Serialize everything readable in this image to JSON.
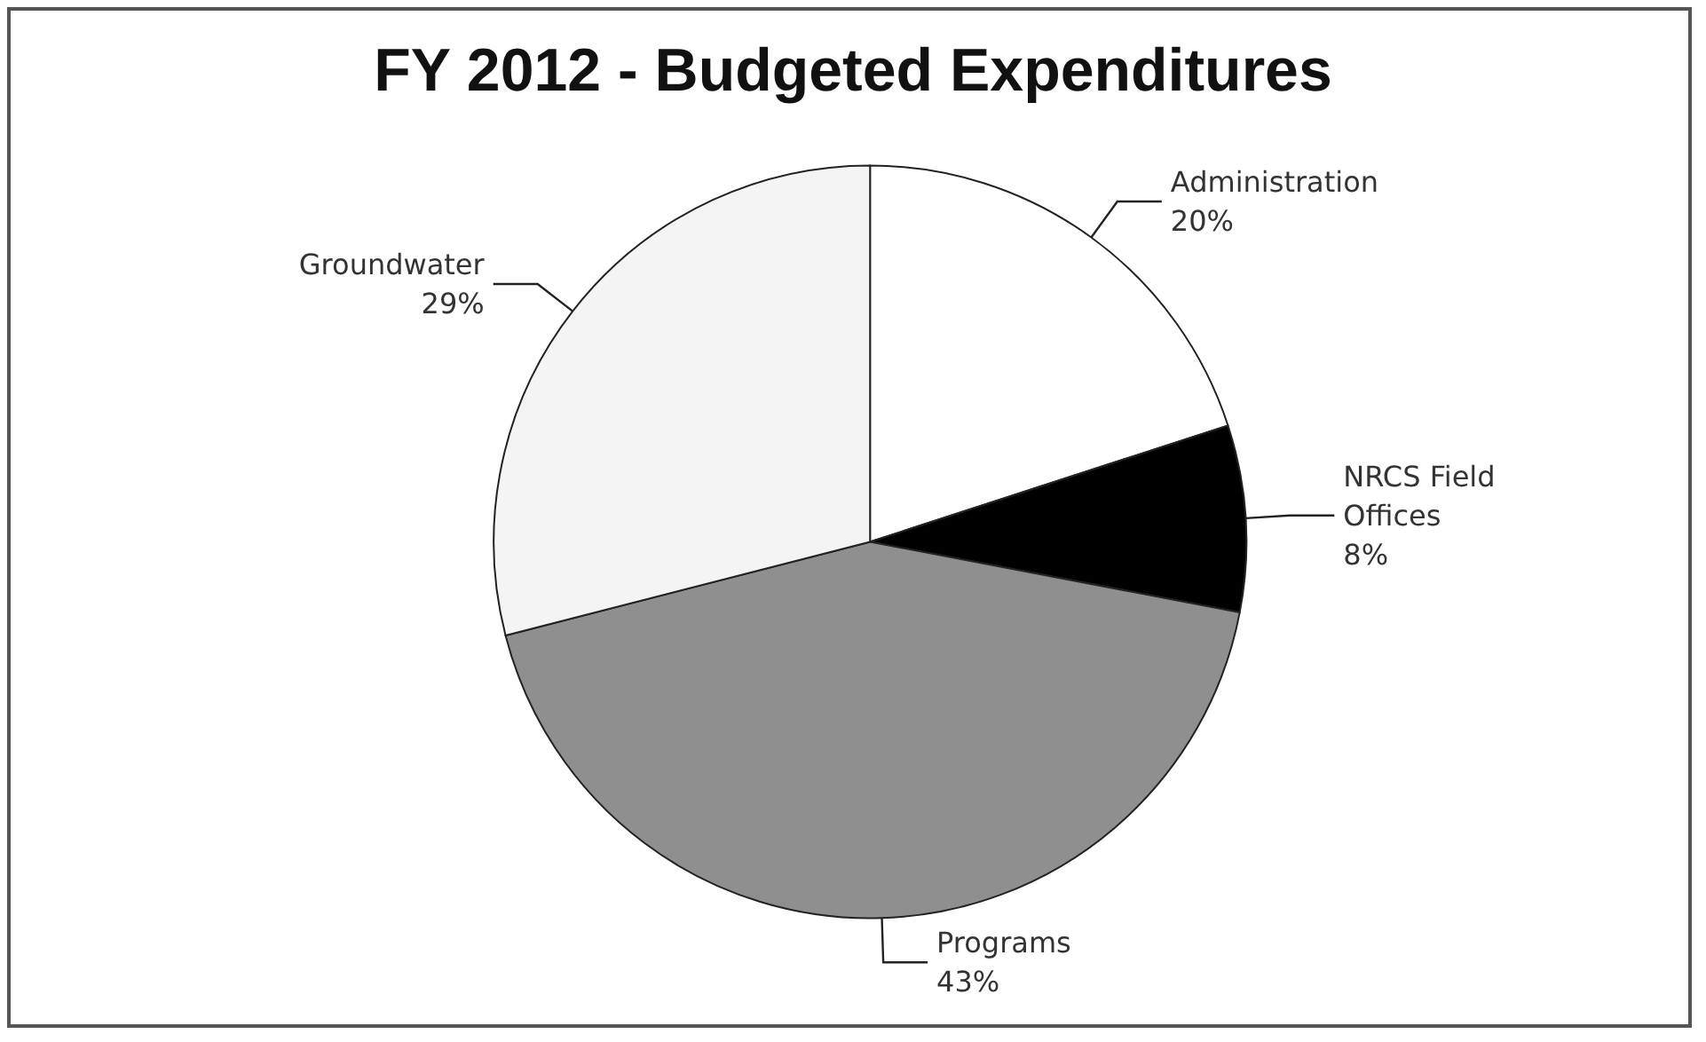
{
  "chart_data": {
    "type": "pie",
    "title": "FY 2012 - Budgeted Expenditures",
    "categories": [
      "Administration",
      "NRCS Field Offices",
      "Programs",
      "Groundwater"
    ],
    "values": [
      20,
      8,
      43,
      29
    ],
    "value_labels": [
      "20%",
      "8%",
      "43%",
      "29%"
    ],
    "colors": [
      "#ffffff",
      "#000000",
      "#8f8f8f",
      "#f4f4f4"
    ],
    "legend": false
  }
}
